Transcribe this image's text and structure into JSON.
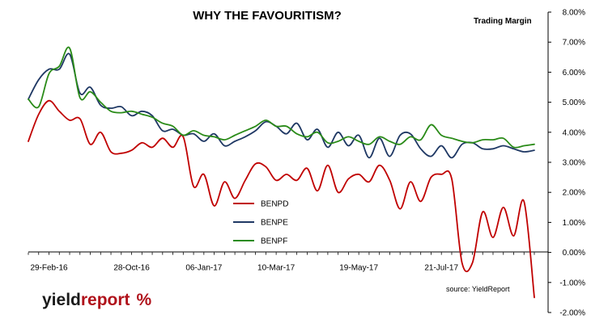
{
  "branding": {
    "logo_word_1": "yield",
    "logo_word_2": "report",
    "logo_symbol": "%",
    "source_text": "source: YieldReport"
  },
  "chart_data": {
    "type": "line",
    "title": "WHY THE FAVOURITISM?",
    "y_axis_title": "Trading  Margin",
    "xlabel": "",
    "ylabel": "",
    "y_axis_position": "right",
    "ylim": [
      -0.02,
      0.08
    ],
    "yticks": [
      "8.00%",
      "7.00%",
      "6.00%",
      "5.00%",
      "4.00%",
      "3.00%",
      "2.00%",
      "1.00%",
      "0.00%",
      "-1.00%",
      "-2.00%"
    ],
    "x_tick_labels": [
      "29-Feb-16",
      "28-Oct-16",
      "06-Jan-17",
      "10-Mar-17",
      "19-May-17",
      "21-Jul-17"
    ],
    "x_count": 50,
    "x_tick_indices": [
      2,
      10,
      17,
      24,
      32,
      40
    ],
    "grid": false,
    "legend_position": "center-left",
    "series": [
      {
        "name": "BENPD",
        "color": "#c00000",
        "values": [
          3.7,
          4.6,
          5.05,
          4.7,
          4.4,
          4.45,
          3.6,
          4.0,
          3.35,
          3.3,
          3.4,
          3.65,
          3.5,
          3.8,
          3.5,
          3.85,
          2.2,
          2.6,
          1.55,
          2.35,
          1.8,
          2.4,
          2.95,
          2.85,
          2.4,
          2.6,
          2.4,
          2.8,
          2.05,
          2.9,
          2.0,
          2.45,
          2.6,
          2.35,
          2.9,
          2.4,
          1.45,
          2.35,
          1.7,
          2.5,
          2.6,
          2.45,
          -0.35,
          -0.35,
          1.35,
          0.5,
          1.5,
          0.55,
          1.7,
          -1.5
        ]
      },
      {
        "name": "BENPE",
        "color": "#1f3864",
        "values": [
          5.1,
          5.75,
          6.1,
          6.1,
          6.6,
          5.3,
          5.5,
          4.9,
          4.8,
          4.85,
          4.55,
          4.7,
          4.55,
          4.05,
          4.1,
          3.9,
          3.95,
          3.7,
          3.95,
          3.55,
          3.7,
          3.85,
          4.05,
          4.35,
          4.2,
          3.95,
          4.3,
          3.75,
          4.1,
          3.5,
          4.0,
          3.55,
          3.9,
          3.15,
          3.8,
          3.2,
          3.9,
          3.95,
          3.45,
          3.2,
          3.55,
          3.15,
          3.6,
          3.65,
          3.45,
          3.45,
          3.55,
          3.45,
          3.35,
          3.4
        ]
      },
      {
        "name": "BENPF",
        "color": "#2a8b18",
        "values": [
          5.1,
          4.85,
          5.95,
          6.2,
          6.8,
          5.15,
          5.35,
          5.0,
          4.7,
          4.65,
          4.7,
          4.6,
          4.5,
          4.3,
          4.2,
          3.9,
          4.05,
          3.9,
          3.85,
          3.75,
          3.9,
          4.05,
          4.2,
          4.4,
          4.2,
          4.2,
          3.95,
          3.85,
          4.0,
          3.65,
          3.7,
          3.85,
          3.7,
          3.6,
          3.85,
          3.7,
          3.6,
          3.85,
          3.75,
          4.25,
          3.9,
          3.8,
          3.7,
          3.65,
          3.75,
          3.75,
          3.8,
          3.5,
          3.55,
          3.6
        ]
      }
    ]
  }
}
